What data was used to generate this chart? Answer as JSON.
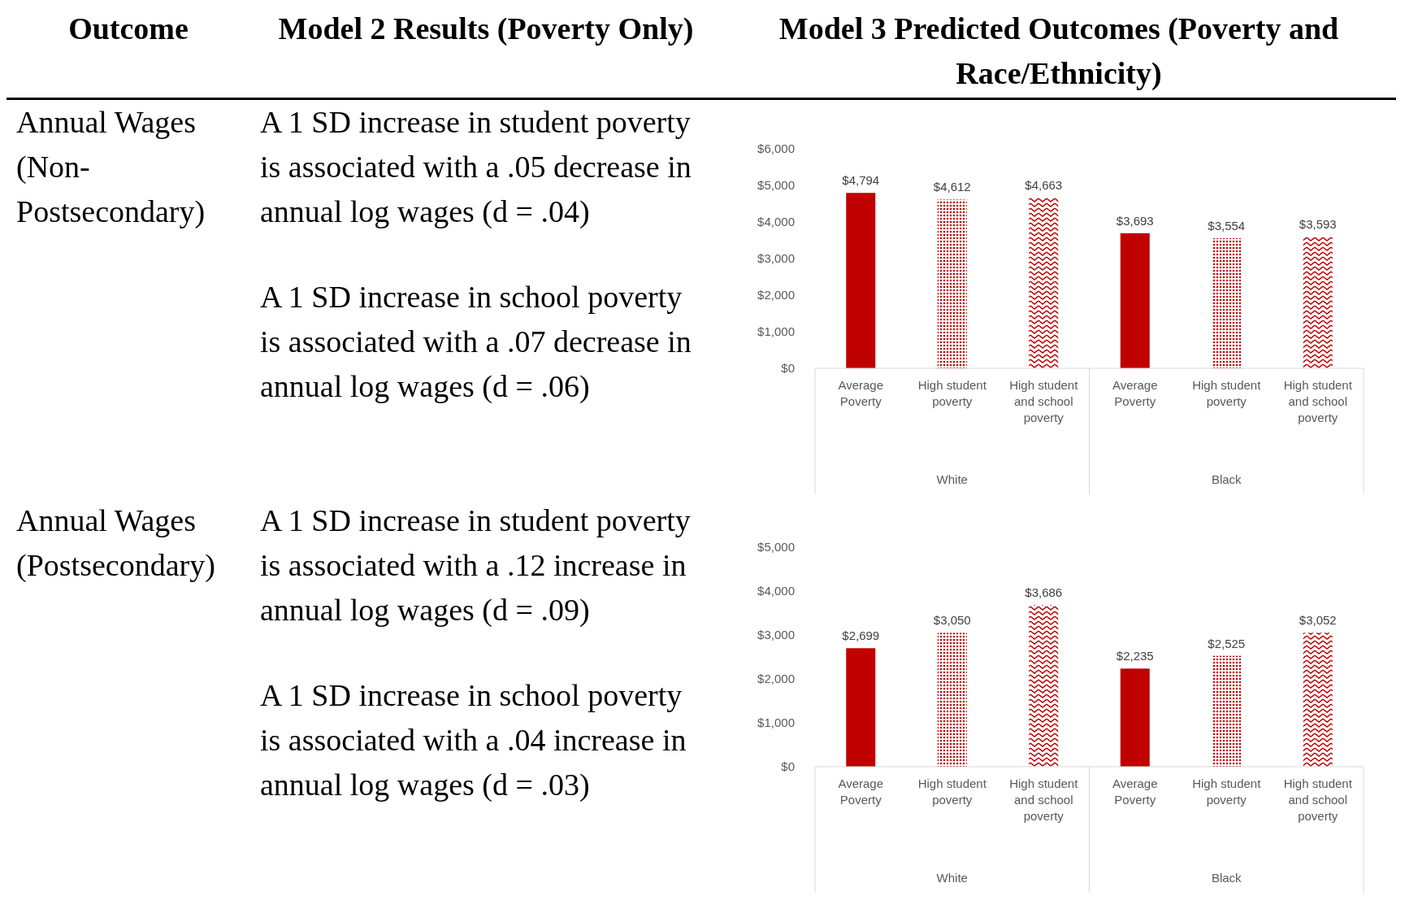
{
  "chart_data": [
    {
      "type": "other",
      "annotations": [
        "Outcome",
        "Model 2 Results (Poverty Only)",
        "Model 3 Predicted Outcomes (Poverty and Race/Ethnicity)"
      ]
    },
    {
      "type": "other",
      "annotations": [
        "Annual Wages (Non-Postsecondary)",
        "A 1 SD increase in student poverty is associated with a .05 decrease in annual log wages (d = .04)",
        "A 1 SD increase in school poverty is associated with a .07 decrease in annual log wages (d = .06)"
      ]
    },
    {
      "type": "bar",
      "categories": [
        "Average Poverty",
        "High student poverty",
        "High student and school poverty",
        "Average Poverty",
        "High student poverty",
        "High student and school poverty"
      ],
      "values": [
        4794,
        4612,
        4663,
        3693,
        3554,
        3593
      ],
      "value_labels": [
        "$4,794",
        "$4,612",
        "$4,663",
        "$3,693",
        "$3,554",
        "$3,593"
      ],
      "colors": [
        "#c00000",
        "#c00000",
        "#c00000",
        "#c00000",
        "#c00000",
        "#c00000"
      ],
      "ylim": [
        0,
        6000
      ],
      "yticks": [
        {
          "value": 0,
          "label": "$0"
        },
        {
          "value": 1000,
          "label": "$1,000"
        },
        {
          "value": 2000,
          "label": "$2,000"
        },
        {
          "value": 3000,
          "label": "$3,000"
        },
        {
          "value": 4000,
          "label": "$4,000"
        },
        {
          "value": 5000,
          "label": "$5,000"
        },
        {
          "value": 6000,
          "label": "$6,000"
        }
      ],
      "annotations": [
        "White",
        "Black"
      ]
    },
    {
      "type": "other",
      "annotations": [
        "Annual Wages (Postsecondary)",
        "A 1 SD increase in student poverty is associated with a .12 increase in annual log wages (d = .09)",
        "A 1 SD increase in school poverty is associated with a .04 increase in annual log wages (d = .03)"
      ]
    },
    {
      "type": "bar",
      "categories": [
        "Average Poverty",
        "High student poverty",
        "High student and school poverty",
        "Average Poverty",
        "High student poverty",
        "High student and school poverty"
      ],
      "values": [
        2699,
        3050,
        3686,
        2235,
        2525,
        3052
      ],
      "value_labels": [
        "$2,699",
        "$3,050",
        "$3,686",
        "$2,235",
        "$2,525",
        "$3,052"
      ],
      "colors": [
        "#c00000",
        "#c00000",
        "#c00000",
        "#c00000",
        "#c00000",
        "#c00000"
      ],
      "ylim": [
        0,
        5000
      ],
      "yticks": [
        {
          "value": 0,
          "label": "$0"
        },
        {
          "value": 1000,
          "label": "$1,000"
        },
        {
          "value": 2000,
          "label": "$2,000"
        },
        {
          "value": 3000,
          "label": "$3,000"
        },
        {
          "value": 4000,
          "label": "$4,000"
        },
        {
          "value": 5000,
          "label": "$5,000"
        }
      ],
      "annotations": [
        "White",
        "Black"
      ]
    }
  ]
}
